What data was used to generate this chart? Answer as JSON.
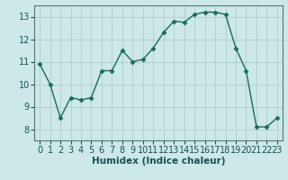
{
  "x": [
    0,
    1,
    2,
    3,
    4,
    5,
    6,
    7,
    8,
    9,
    10,
    11,
    12,
    13,
    14,
    15,
    16,
    17,
    18,
    19,
    20,
    21,
    22,
    23
  ],
  "y": [
    10.9,
    10.0,
    8.5,
    9.4,
    9.3,
    9.4,
    10.6,
    10.6,
    11.5,
    11.0,
    11.1,
    11.6,
    12.3,
    12.8,
    12.75,
    13.1,
    13.2,
    13.2,
    13.1,
    11.6,
    10.6,
    8.1,
    8.1,
    8.5
  ],
  "line_color": "#1a6b5a",
  "marker": "D",
  "marker_size": 2.5,
  "bg_color": "#cce8e8",
  "grid_major_color": "#b0cccc",
  "grid_minor_color": "#c8e0e0",
  "xlabel": "Humidex (Indice chaleur)",
  "ylim": [
    7.5,
    13.5
  ],
  "xlim": [
    -0.5,
    23.5
  ],
  "yticks": [
    8,
    9,
    10,
    11,
    12,
    13
  ],
  "xticks": [
    0,
    1,
    2,
    3,
    4,
    5,
    6,
    7,
    8,
    9,
    10,
    11,
    12,
    13,
    14,
    15,
    16,
    17,
    18,
    19,
    20,
    21,
    22,
    23
  ],
  "xlabel_fontsize": 7.5,
  "tick_fontsize": 7.0,
  "linewidth": 1.0
}
